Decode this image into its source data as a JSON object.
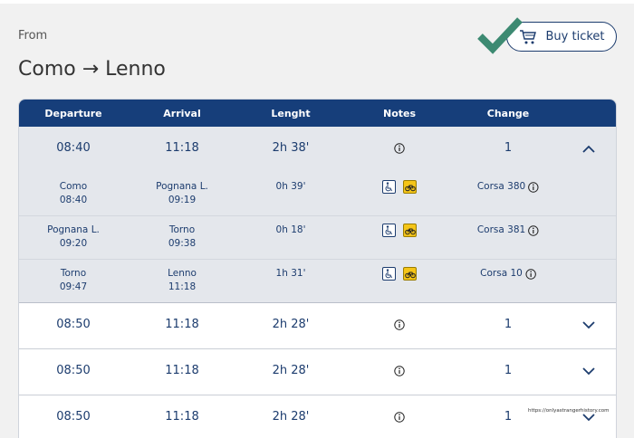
{
  "header": {
    "from_label": "From",
    "route": "Como → Lenno",
    "buy_ticket_label": "Buy ticket"
  },
  "table": {
    "columns": [
      "Departure",
      "Arrival",
      "Lenght",
      "Notes",
      "Change"
    ],
    "expanded": {
      "departure": "08:40",
      "arrival": "11:18",
      "length": "2h 38'",
      "change": "1",
      "segments": [
        {
          "from": "Como",
          "from_time": "08:40",
          "to": "Pognana L.",
          "to_time": "09:19",
          "duration": "0h 39'",
          "corsa": "Corsa 380"
        },
        {
          "from": "Pognana L.",
          "from_time": "09:20",
          "to": "Torno",
          "to_time": "09:38",
          "duration": "0h 18'",
          "corsa": "Corsa 381"
        },
        {
          "from": "Torno",
          "from_time": "09:47",
          "to": "Lenno",
          "to_time": "11:18",
          "duration": "1h 31'",
          "corsa": "Corsa 10"
        }
      ]
    },
    "rows": [
      {
        "departure": "08:50",
        "arrival": "11:18",
        "length": "2h 28'",
        "change": "1"
      },
      {
        "departure": "08:50",
        "arrival": "11:18",
        "length": "2h 28'",
        "change": "1"
      },
      {
        "departure": "08:50",
        "arrival": "11:18",
        "length": "2h 28'",
        "change": "1"
      }
    ]
  },
  "watermark": "https://onlyastrangerhistory.com",
  "colors": {
    "primary": "#163e7a",
    "check": "#3d8a72",
    "bike_badge": "#f5c518"
  }
}
